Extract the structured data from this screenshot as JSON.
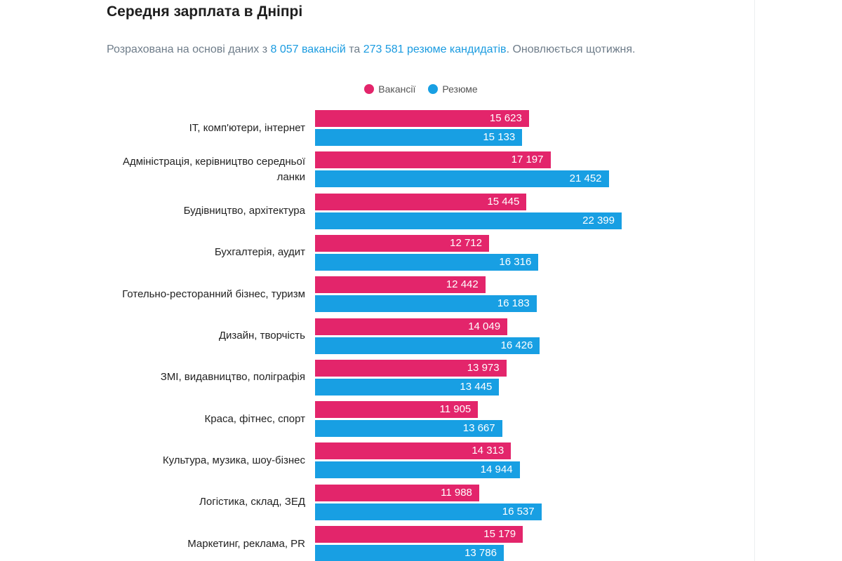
{
  "header": {
    "title": "Середня зарплата в Дніпрі",
    "subtitle": [
      "Розрахована на основі даних з ",
      "8 057 вакансій",
      " та ",
      "273 581 резюме кандидатів",
      ". Оновлюється щотижня."
    ]
  },
  "chart_data": {
    "type": "bar",
    "orientation": "horizontal",
    "categories": [
      "IT, комп'ютери, інтернет",
      "Адміністрація, керівництво середньої ланки",
      "Будівництво, архітектура",
      "Бухгалтерія, аудит",
      "Готельно-ресторанний бізнес, туризм",
      "Дизайн, творчість",
      "ЗМІ, видавництво, поліграфія",
      "Краса, фітнес, спорт",
      "Культура, музика, шоу-бізнес",
      "Логістика, склад, ЗЕД",
      "Маркетинг, реклама, PR"
    ],
    "series": [
      {
        "name": "Вакансії",
        "color": "#e3256b",
        "values": [
          15623,
          17197,
          15445,
          12712,
          12442,
          14049,
          13973,
          11905,
          14313,
          11988,
          15179
        ],
        "value_labels": [
          "15 623",
          "17 197",
          "15 445",
          "12 712",
          "12 442",
          "14 049",
          "13 973",
          "11 905",
          "14 313",
          "11 988",
          "15 179"
        ]
      },
      {
        "name": "Резюме",
        "color": "#189fe3",
        "values": [
          15133,
          21452,
          22399,
          16316,
          16183,
          16426,
          13445,
          13667,
          14944,
          16537,
          13786
        ],
        "value_labels": [
          "15 133",
          "21 452",
          "22 399",
          "16 316",
          "16 183",
          "16 426",
          "13 445",
          "13 667",
          "14 944",
          "16 537",
          "13 786"
        ]
      }
    ],
    "legend": "top"
  }
}
